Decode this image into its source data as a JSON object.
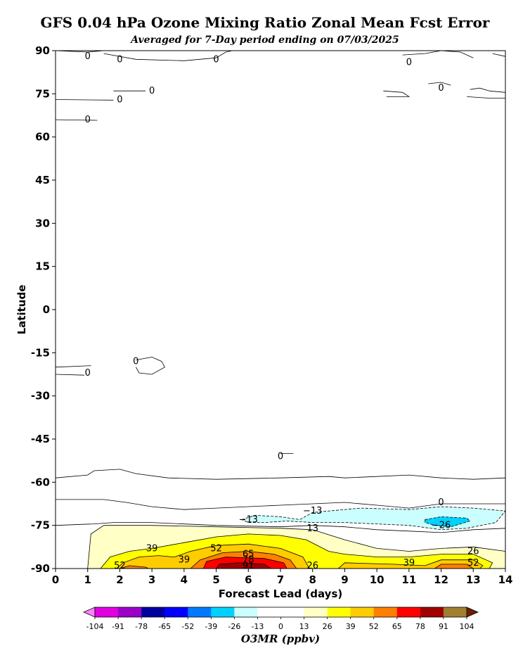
{
  "chart_data": {
    "type": "contour",
    "title": "GFS 0.04 hPa Ozone Mixing Ratio Zonal Mean Fcst Error",
    "subtitle": "Averaged for 7-Day period ending on 07/03/2025",
    "xlabel": "Forecast Lead (days)",
    "ylabel": "Latitude",
    "xlim": [
      0,
      14
    ],
    "ylim": [
      -90,
      90
    ],
    "xticks": [
      "0",
      "1",
      "2",
      "3",
      "4",
      "5",
      "6",
      "7",
      "8",
      "9",
      "10",
      "11",
      "12",
      "13",
      "14"
    ],
    "yticks": [
      "90",
      "75",
      "60",
      "45",
      "30",
      "15",
      "0",
      "-15",
      "-30",
      "-45",
      "-60",
      "-75",
      "-90"
    ],
    "colorbar": {
      "label": "O3MR (ppbv)",
      "levels": [
        "-104",
        "-91",
        "-78",
        "-65",
        "-52",
        "-39",
        "-26",
        "-13",
        "0",
        "13",
        "26",
        "39",
        "52",
        "65",
        "78",
        "91",
        "104"
      ],
      "colors": [
        "#e200e2",
        "#9c00c8",
        "#0000a0",
        "#0000ff",
        "#0078ff",
        "#00d2ff",
        "#cbffff",
        "#ffffff",
        "#ffffff",
        "#ffffc6",
        "#ffff00",
        "#ffcc00",
        "#ff8000",
        "#ff0000",
        "#a00000",
        "#a08030"
      ],
      "under_color": "#ff80ff",
      "over_color": "#6e1e00"
    },
    "contour_labels": [
      {
        "x": 1.0,
        "y": 88,
        "text": "0"
      },
      {
        "x": 2.0,
        "y": 87,
        "text": "0"
      },
      {
        "x": 5.0,
        "y": 87,
        "text": "0"
      },
      {
        "x": 11.0,
        "y": 86,
        "text": "0"
      },
      {
        "x": 3.0,
        "y": 76,
        "text": "0"
      },
      {
        "x": 2.0,
        "y": 73,
        "text": "0"
      },
      {
        "x": 1.0,
        "y": 66,
        "text": "0"
      },
      {
        "x": 12.0,
        "y": 77,
        "text": "0"
      },
      {
        "x": 1.0,
        "y": -22,
        "text": "0"
      },
      {
        "x": 2.5,
        "y": -18,
        "text": "0"
      },
      {
        "x": 7.0,
        "y": -51,
        "text": "0"
      },
      {
        "x": 12.0,
        "y": -67,
        "text": "0"
      },
      {
        "x": 8.0,
        "y": -70,
        "text": "−13"
      },
      {
        "x": 6.0,
        "y": -73,
        "text": "−13"
      },
      {
        "x": 12.0,
        "y": -75,
        "text": "−26"
      },
      {
        "x": 8.0,
        "y": -76,
        "text": "13"
      },
      {
        "x": 3.0,
        "y": -83,
        "text": "39"
      },
      {
        "x": 5.0,
        "y": -83,
        "text": "52"
      },
      {
        "x": 4.0,
        "y": -87,
        "text": "39"
      },
      {
        "x": 2.0,
        "y": -89,
        "text": "52"
      },
      {
        "x": 6.0,
        "y": -85,
        "text": "65"
      },
      {
        "x": 6.0,
        "y": -87,
        "text": "78"
      },
      {
        "x": 6.0,
        "y": -89,
        "text": "91"
      },
      {
        "x": 8.0,
        "y": -89,
        "text": "26"
      },
      {
        "x": 11.0,
        "y": -88,
        "text": "39"
      },
      {
        "x": 13.0,
        "y": -84,
        "text": "26"
      },
      {
        "x": 13.0,
        "y": -88,
        "text": "52"
      }
    ],
    "filled_regions": [
      {
        "level": "13",
        "color": "#ffffc6",
        "points": [
          [
            1.0,
            -90
          ],
          [
            1.1,
            -78
          ],
          [
            1.5,
            -75
          ],
          [
            3,
            -75
          ],
          [
            5,
            -75.5
          ],
          [
            7,
            -76
          ],
          [
            8,
            -76.5
          ],
          [
            9,
            -80
          ],
          [
            10,
            -83
          ],
          [
            11,
            -84
          ],
          [
            12,
            -83
          ],
          [
            13,
            -82.5
          ],
          [
            14,
            -84
          ],
          [
            14,
            -90
          ]
        ]
      },
      {
        "level": "26",
        "color": "#ffff00",
        "points": [
          [
            1.4,
            -90
          ],
          [
            1.7,
            -86
          ],
          [
            2.3,
            -84
          ],
          [
            3,
            -83
          ],
          [
            4,
            -81
          ],
          [
            5,
            -79
          ],
          [
            6,
            -78
          ],
          [
            7,
            -78.5
          ],
          [
            7.8,
            -80
          ],
          [
            8.5,
            -84
          ],
          [
            9,
            -85
          ],
          [
            10,
            -86
          ],
          [
            11,
            -86
          ],
          [
            12,
            -85
          ],
          [
            13,
            -85
          ],
          [
            13.6,
            -88
          ],
          [
            13.5,
            -90
          ]
        ]
      },
      {
        "level": "39",
        "color": "#ffcc00",
        "points": [
          [
            1.9,
            -90
          ],
          [
            2.1,
            -88
          ],
          [
            2.6,
            -86
          ],
          [
            3.2,
            -85.5
          ],
          [
            3.7,
            -86
          ],
          [
            4.2,
            -84
          ],
          [
            5,
            -82
          ],
          [
            6,
            -81.5
          ],
          [
            7,
            -83
          ],
          [
            7.7,
            -86
          ],
          [
            7.9,
            -90
          ]
        ]
      },
      {
        "level": "39b",
        "color": "#ffcc00",
        "points": [
          [
            8.8,
            -90
          ],
          [
            9,
            -88
          ],
          [
            10.5,
            -88.5
          ],
          [
            11.5,
            -89
          ],
          [
            12,
            -87
          ],
          [
            13,
            -87
          ],
          [
            13.3,
            -89
          ],
          [
            13.2,
            -90
          ]
        ]
      },
      {
        "level": "52",
        "color": "#ff8000",
        "points": [
          [
            2.0,
            -90
          ],
          [
            2.3,
            -89
          ],
          [
            2.8,
            -89.5
          ],
          [
            2.9,
            -90
          ]
        ]
      },
      {
        "level": "52b",
        "color": "#ff8000",
        "points": [
          [
            4.2,
            -90
          ],
          [
            4.5,
            -87
          ],
          [
            5.2,
            -84.5
          ],
          [
            6,
            -84
          ],
          [
            6.8,
            -85
          ],
          [
            7.3,
            -87
          ],
          [
            7.5,
            -90
          ]
        ]
      },
      {
        "level": "52c",
        "color": "#ff8000",
        "points": [
          [
            11.8,
            -90
          ],
          [
            12,
            -88.5
          ],
          [
            12.8,
            -88.5
          ],
          [
            13.0,
            -90
          ]
        ]
      },
      {
        "level": "65",
        "color": "#ff0000",
        "points": [
          [
            4.6,
            -90
          ],
          [
            4.7,
            -87.5
          ],
          [
            5.3,
            -86
          ],
          [
            6.5,
            -86.5
          ],
          [
            7.1,
            -88
          ],
          [
            7.2,
            -90
          ]
        ]
      },
      {
        "level": "78",
        "color": "#a00000",
        "points": [
          [
            5.0,
            -90
          ],
          [
            5.1,
            -88.5
          ],
          [
            5.7,
            -88
          ],
          [
            6.5,
            -88.5
          ],
          [
            6.7,
            -90
          ]
        ]
      },
      {
        "level": "-13",
        "color": "#cbffff",
        "points": [
          [
            5.8,
            -73
          ],
          [
            6.2,
            -71.5
          ],
          [
            7,
            -72
          ],
          [
            7.6,
            -73
          ],
          [
            8,
            -70.5
          ],
          [
            9.5,
            -69
          ],
          [
            11,
            -69.5
          ],
          [
            12,
            -68.5
          ],
          [
            13,
            -69
          ],
          [
            14,
            -70
          ],
          [
            13.7,
            -74
          ],
          [
            12.8,
            -76
          ],
          [
            12,
            -76.5
          ],
          [
            11,
            -75
          ],
          [
            9,
            -74
          ],
          [
            8,
            -74
          ],
          [
            7.2,
            -73.5
          ],
          [
            6.5,
            -74
          ],
          [
            6,
            -74
          ]
        ]
      },
      {
        "level": "-26",
        "color": "#00d2ff",
        "points": [
          [
            11.5,
            -73
          ],
          [
            12,
            -72
          ],
          [
            12.8,
            -72.5
          ],
          [
            12.9,
            -73.5
          ],
          [
            12.3,
            -75.5
          ],
          [
            11.8,
            -75
          ],
          [
            11.5,
            -74
          ]
        ]
      }
    ],
    "contour_lines": [
      {
        "style": "solid",
        "points": [
          [
            0,
            -58.5
          ],
          [
            1,
            -57.5
          ],
          [
            1.2,
            -56
          ],
          [
            2,
            -55.5
          ],
          [
            2.5,
            -57
          ],
          [
            3.5,
            -58.5
          ],
          [
            5,
            -59
          ],
          [
            7,
            -58.5
          ],
          [
            8.5,
            -58
          ],
          [
            9,
            -58.5
          ],
          [
            10,
            -58
          ],
          [
            11,
            -57.5
          ],
          [
            12,
            -58.5
          ],
          [
            13,
            -59
          ],
          [
            14,
            -58.5
          ]
        ]
      },
      {
        "style": "solid",
        "points": [
          [
            0,
            -66
          ],
          [
            1.5,
            -66
          ],
          [
            2.2,
            -67
          ],
          [
            3,
            -68.5
          ],
          [
            4,
            -69.5
          ],
          [
            5,
            -69
          ],
          [
            7,
            -68
          ],
          [
            9,
            -67
          ],
          [
            10,
            -68
          ],
          [
            11,
            -69
          ],
          [
            12,
            -67.5
          ],
          [
            14,
            -67.5
          ]
        ]
      },
      {
        "style": "solid",
        "points": [
          [
            0,
            -75
          ],
          [
            1.2,
            -74.5
          ],
          [
            1.8,
            -74
          ],
          [
            3,
            -74
          ],
          [
            5,
            -75
          ],
          [
            7,
            -75.5
          ],
          [
            8,
            -75
          ],
          [
            9,
            -75.5
          ],
          [
            10,
            -76.5
          ],
          [
            11,
            -77
          ],
          [
            12,
            -77.5
          ],
          [
            13,
            -76.5
          ],
          [
            14,
            -76
          ]
        ]
      },
      {
        "style": "solid",
        "points": [
          [
            0,
            -20
          ],
          [
            1.1,
            -19.5
          ]
        ]
      },
      {
        "style": "solid",
        "points": [
          [
            0,
            -22.5
          ],
          [
            0.9,
            -22.8
          ]
        ]
      },
      {
        "style": "solid",
        "points": [
          [
            2.5,
            -17.5
          ],
          [
            3,
            -16.5
          ],
          [
            3.3,
            -18
          ],
          [
            3.4,
            -20
          ],
          [
            3,
            -22.5
          ],
          [
            2.6,
            -22
          ],
          [
            2.5,
            -20
          ]
        ]
      },
      {
        "style": "solid",
        "points": [
          [
            7.0,
            -50
          ],
          [
            7.4,
            -50
          ]
        ]
      },
      {
        "style": "solid",
        "points": [
          [
            0,
            90
          ],
          [
            1,
            89.5
          ],
          [
            1.5,
            90
          ]
        ]
      },
      {
        "style": "solid",
        "points": [
          [
            1.5,
            89
          ],
          [
            2.5,
            87
          ],
          [
            4,
            86.5
          ],
          [
            5,
            87.5
          ],
          [
            5.3,
            89.5
          ],
          [
            5.5,
            90
          ]
        ]
      },
      {
        "style": "solid",
        "points": [
          [
            10.8,
            88.5
          ],
          [
            11.5,
            89
          ],
          [
            12,
            90
          ],
          [
            12.6,
            89.5
          ],
          [
            13,
            87.5
          ]
        ]
      },
      {
        "style": "solid",
        "points": [
          [
            13.6,
            89
          ],
          [
            14,
            88
          ]
        ]
      },
      {
        "style": "solid",
        "points": [
          [
            1.8,
            76
          ],
          [
            2.8,
            76
          ]
        ]
      },
      {
        "style": "solid",
        "points": [
          [
            0,
            73
          ],
          [
            1.8,
            72.8
          ]
        ]
      },
      {
        "style": "solid",
        "points": [
          [
            0,
            66
          ],
          [
            1.3,
            65.8
          ]
        ]
      },
      {
        "style": "solid",
        "points": [
          [
            10.2,
            76
          ],
          [
            10.8,
            75.5
          ],
          [
            11,
            74
          ],
          [
            10.3,
            74
          ]
        ]
      },
      {
        "style": "solid",
        "points": [
          [
            11.6,
            78.5
          ],
          [
            12,
            79
          ],
          [
            12.3,
            78
          ]
        ]
      },
      {
        "style": "solid",
        "points": [
          [
            12.9,
            76.5
          ],
          [
            13.2,
            77
          ],
          [
            13.5,
            76
          ],
          [
            14,
            75.5
          ]
        ]
      },
      {
        "style": "solid",
        "points": [
          [
            12.8,
            74
          ],
          [
            13.5,
            73.5
          ],
          [
            14,
            73.5
          ]
        ]
      }
    ]
  }
}
